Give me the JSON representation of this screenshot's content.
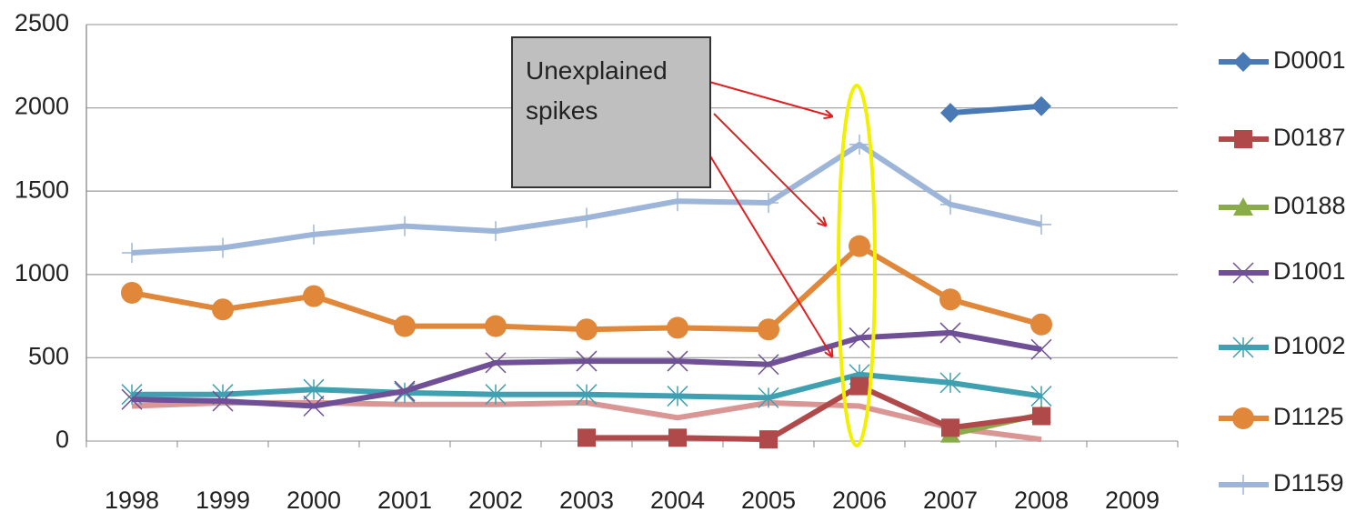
{
  "chart_data": {
    "type": "line",
    "categories": [
      "1998",
      "1999",
      "2000",
      "2001",
      "2002",
      "2003",
      "2004",
      "2005",
      "2006",
      "2007",
      "2008",
      "2009"
    ],
    "ylim": [
      0,
      2500
    ],
    "yticks": [
      0,
      500,
      1000,
      1500,
      2000,
      2500
    ],
    "grid": true,
    "legend": "right",
    "annotation": "Unexplained spikes",
    "series": [
      {
        "name": "D0001",
        "color": "#4a7ab5",
        "marker": "diamond",
        "values": [
          null,
          null,
          null,
          null,
          null,
          null,
          null,
          null,
          null,
          1970,
          2010,
          null
        ]
      },
      {
        "name": "D0187",
        "color": "#b04a4a",
        "marker": "square",
        "values": [
          null,
          null,
          null,
          null,
          null,
          20,
          20,
          10,
          330,
          80,
          150,
          null
        ]
      },
      {
        "name": "D0188",
        "color": "#8aab4a",
        "marker": "triangle",
        "values": [
          null,
          null,
          null,
          null,
          null,
          null,
          null,
          null,
          null,
          40,
          160,
          null
        ]
      },
      {
        "name": "D1001",
        "color": "#6f4f96",
        "marker": "x",
        "values": [
          250,
          240,
          210,
          300,
          470,
          480,
          480,
          460,
          620,
          650,
          550,
          null
        ]
      },
      {
        "name": "D1002",
        "color": "#3ea0b0",
        "marker": "star",
        "values": [
          280,
          280,
          310,
          290,
          280,
          280,
          270,
          260,
          400,
          350,
          270,
          null
        ]
      },
      {
        "name": "D1125",
        "color": "#e0873a",
        "marker": "circle",
        "values": [
          890,
          790,
          870,
          690,
          690,
          670,
          680,
          670,
          1170,
          850,
          700,
          null
        ]
      },
      {
        "name": "D1159",
        "color": "#9db5d9",
        "marker": "plus",
        "values": [
          1130,
          1160,
          1240,
          1290,
          1260,
          1340,
          1440,
          1430,
          1780,
          1420,
          1300,
          null
        ]
      },
      {
        "color": "#d99694",
        "marker": "none",
        "values": [
          210,
          230,
          230,
          220,
          220,
          230,
          140,
          230,
          210,
          80,
          10,
          null
        ]
      }
    ]
  }
}
